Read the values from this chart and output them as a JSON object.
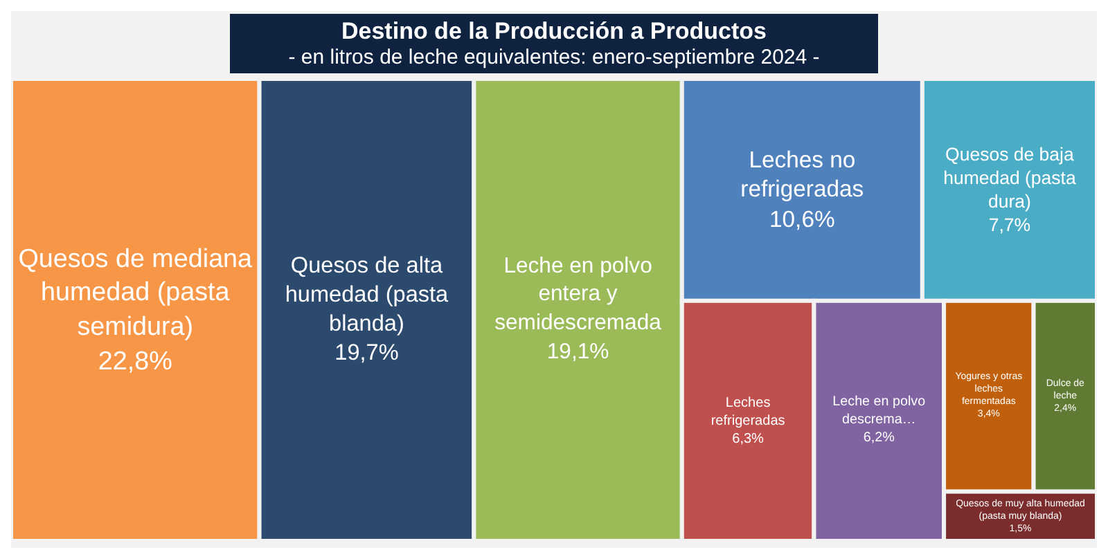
{
  "chart_data": {
    "type": "other",
    "title": "Destino de la Producción a Productos",
    "subtitle": "- en litros de leche equivalentes: enero-septiembre 2024 -",
    "categories": [
      "Quesos de mediana humedad (pasta semidura)",
      "Quesos de alta humedad (pasta blanda)",
      "Leche en polvo entera y semidescremada",
      "Leches no refrigeradas",
      "Quesos de baja humedad (pasta dura)",
      "Leches refrigeradas",
      "Leche en polvo descrema…",
      "Yogures y otras leches fermentadas ",
      "Dulce de leche",
      "Quesos de muy alta humedad (pasta muy blanda)"
    ],
    "values": [
      22.8,
      19.7,
      19.1,
      10.6,
      7.7,
      6.3,
      6.2,
      3.4,
      2.4,
      1.5
    ],
    "value_labels": [
      "22,8%",
      "19,7%",
      "19,1%",
      "10,6%",
      "7,7%",
      "6,3%",
      "6,2%",
      "3,4%",
      "2,4%",
      "1,5%"
    ],
    "colors": [
      "#f79646",
      "#2c4a6e",
      "#9bbb59",
      "#4f81bd",
      "#4bacc6",
      "#c0504d",
      "#8064a2",
      "#c0600c",
      "#5f7a32",
      "#7b2c2c"
    ]
  }
}
